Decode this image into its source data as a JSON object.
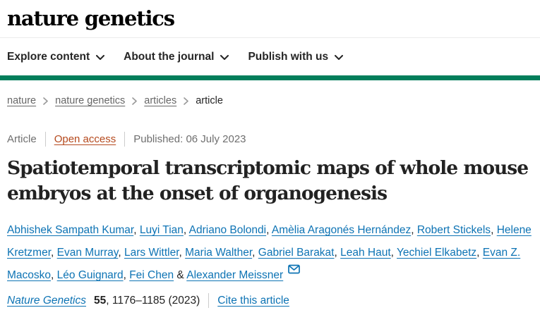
{
  "brand": {
    "wordmark": "nature genetics"
  },
  "nav": {
    "items": [
      {
        "label": "Explore content"
      },
      {
        "label": "About the journal"
      },
      {
        "label": "Publish with us"
      }
    ]
  },
  "breadcrumb": {
    "items": [
      "nature",
      "nature genetics",
      "articles",
      "article"
    ]
  },
  "meta": {
    "article_type": "Article",
    "access_label": "Open access",
    "published": "Published: 06 July 2023"
  },
  "article": {
    "title": "Spatiotemporal transcriptomic maps of whole mouse embryos at the onset of organogenesis"
  },
  "authors": {
    "names": [
      "Abhishek Sampath Kumar",
      "Luyi Tian",
      "Adriano Bolondi",
      "Amèlia Aragonés Hernández",
      "Robert Stickels",
      "Helene Kretzmer",
      "Evan Murray",
      "Lars Wittler",
      "Maria Walther",
      "Gabriel Barakat",
      "Leah Haut",
      "Yechiel Elkabetz",
      "Evan Z. Macosko",
      "Léo Guignard",
      "Fei Chen",
      "Alexander Meissner"
    ],
    "separator": ", ",
    "last_joiner": " & ",
    "email_icon": "envelope-icon"
  },
  "citation": {
    "journal": "Nature Genetics",
    "volume": "55",
    "pages_suffix": ", 1176–1185 (2023)",
    "cite_link_label": "Cite this article"
  },
  "colors": {
    "brand_green": "#027e5b",
    "link_blue": "#0d73b4",
    "open_access_orange": "#b5491d",
    "muted_gray": "#6f6f6f"
  }
}
